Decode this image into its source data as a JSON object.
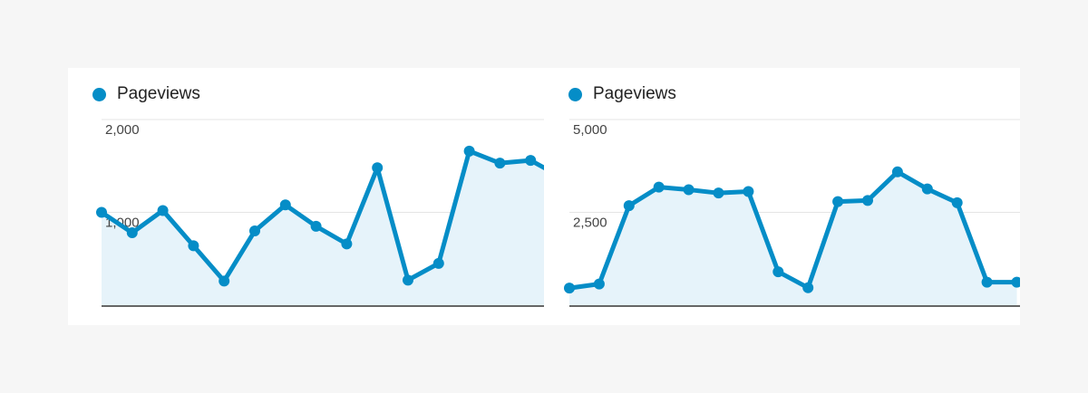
{
  "colors": {
    "series": "#058dc7",
    "area": "#e6f3fa",
    "grid": "#e5e5e5",
    "axis": "#333333",
    "background": "#f6f6f6",
    "card": "#ffffff"
  },
  "chart_data": [
    {
      "type": "area",
      "series": [
        {
          "name": "Pageviews",
          "values": [
            1000,
            780,
            1020,
            640,
            260,
            800,
            1080,
            850,
            660,
            1480,
            270,
            450,
            1660,
            1530,
            1560,
            1380
          ]
        }
      ],
      "y_ticks": [
        "2,000",
        "1,000"
      ],
      "y_tick_values": [
        2000,
        1000
      ],
      "ylim": [
        0,
        2000
      ],
      "legend": "top-left",
      "grid": true
    },
    {
      "type": "area",
      "series": [
        {
          "name": "Pageviews",
          "values": [
            460,
            570,
            2680,
            3180,
            3110,
            3020,
            3060,
            900,
            470,
            2790,
            2820,
            3590,
            3130,
            2760,
            620,
            620
          ]
        }
      ],
      "y_ticks": [
        "5,000",
        "2,500"
      ],
      "y_tick_values": [
        5000,
        2500
      ],
      "ylim": [
        0,
        5000
      ],
      "legend": "top-left",
      "grid": true
    }
  ]
}
